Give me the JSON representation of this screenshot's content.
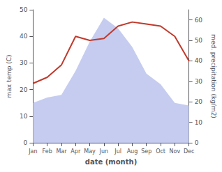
{
  "chart_data": {
    "type": "line",
    "categories": [
      "Jan",
      "Feb",
      "Mar",
      "Apr",
      "May",
      "Jun",
      "Jul",
      "Aug",
      "Sep",
      "Oct",
      "Nov",
      "Dec"
    ],
    "series": [
      {
        "type": "area",
        "color": "#c5ccf0",
        "values": [
          15,
          17,
          18,
          27,
          38,
          47,
          43,
          36,
          26,
          22,
          15,
          14
        ]
      },
      {
        "type": "line",
        "axis": "y2",
        "color": "#c0392b",
        "values": [
          29,
          32,
          38,
          52,
          50,
          51,
          57,
          59,
          58,
          57,
          52,
          40
        ]
      }
    ],
    "xlabel": "date (month)",
    "ylabel": "max temp (C)",
    "y2label": "med. precipitation (kg/m2)",
    "ylim": [
      0,
      50
    ],
    "yticks": [
      0,
      10,
      20,
      30,
      40,
      50
    ],
    "y2lim": [
      0,
      65
    ],
    "y2ticks": [
      0,
      10,
      20,
      30,
      40,
      50,
      60
    ],
    "grid": false
  }
}
